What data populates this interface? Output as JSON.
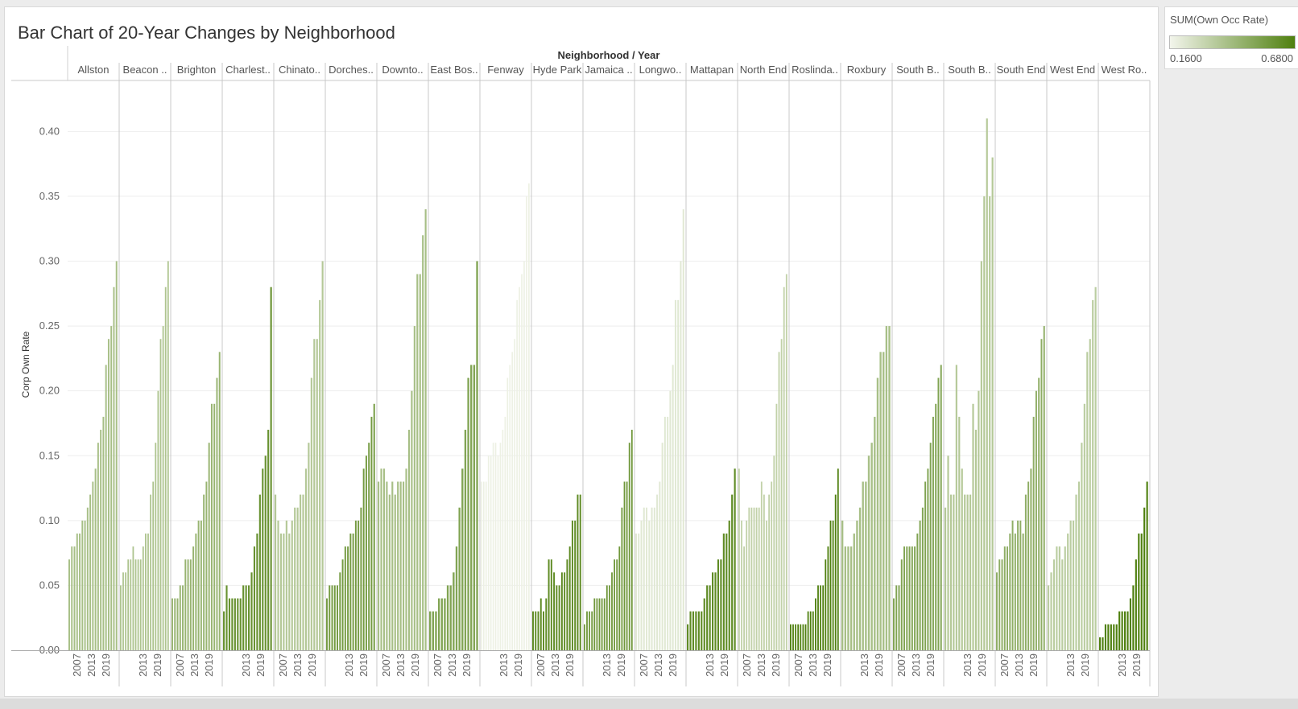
{
  "chart_data": {
    "type": "bar",
    "title": "Bar Chart of 20-Year Changes by Neighborhood",
    "column_header": "Neighborhood / Year",
    "ylabel": "Corp Own Rate",
    "ylim": [
      0,
      0.43
    ],
    "y_ticks": [
      "0.00",
      "0.05",
      "0.10",
      "0.15",
      "0.20",
      "0.25",
      "0.30",
      "0.35",
      "0.40"
    ],
    "x_tick_labels": [
      "2007",
      "2013",
      "2019"
    ],
    "color_legend": {
      "title": "SUM(Own Occ Rate)",
      "min_label": "0.1600",
      "max_label": "0.6800",
      "min_color": "#f3f5ec",
      "max_color": "#4f800f"
    },
    "neighborhoods": [
      {
        "name": "Allston",
        "color_value": 0.4,
        "hidden_ticks": [],
        "values": [
          0.07,
          0.08,
          0.08,
          0.09,
          0.09,
          0.1,
          0.1,
          0.11,
          0.12,
          0.13,
          0.14,
          0.16,
          0.17,
          0.18,
          0.22,
          0.24,
          0.25,
          0.28,
          0.3
        ]
      },
      {
        "name": "Beacon ..",
        "color_value": 0.38,
        "hidden_ticks": [
          "2007"
        ],
        "values": [
          0.05,
          0.06,
          0.06,
          0.07,
          0.07,
          0.08,
          0.07,
          0.07,
          0.07,
          0.08,
          0.09,
          0.09,
          0.12,
          0.13,
          0.16,
          0.2,
          0.24,
          0.25,
          0.28,
          0.3
        ]
      },
      {
        "name": "Brighton",
        "color_value": 0.45,
        "hidden_ticks": [],
        "values": [
          0.04,
          0.04,
          0.04,
          0.05,
          0.05,
          0.07,
          0.07,
          0.07,
          0.08,
          0.09,
          0.1,
          0.1,
          0.12,
          0.13,
          0.16,
          0.19,
          0.19,
          0.21,
          0.23
        ]
      },
      {
        "name": "Charlest..",
        "color_value": 0.6,
        "hidden_ticks": [
          "2007"
        ],
        "values": [
          0.03,
          0.05,
          0.04,
          0.04,
          0.04,
          0.04,
          0.04,
          0.05,
          0.05,
          0.05,
          0.06,
          0.08,
          0.09,
          0.12,
          0.14,
          0.15,
          0.17,
          0.28
        ]
      },
      {
        "name": "Chinato..",
        "color_value": 0.36,
        "hidden_ticks": [],
        "values": [
          0.12,
          0.1,
          0.09,
          0.09,
          0.1,
          0.09,
          0.1,
          0.11,
          0.11,
          0.12,
          0.12,
          0.14,
          0.16,
          0.21,
          0.24,
          0.24,
          0.27,
          0.3
        ]
      },
      {
        "name": "Dorches..",
        "color_value": 0.56,
        "hidden_ticks": [
          "2007"
        ],
        "values": [
          0.04,
          0.05,
          0.05,
          0.05,
          0.05,
          0.06,
          0.07,
          0.08,
          0.08,
          0.09,
          0.09,
          0.1,
          0.1,
          0.11,
          0.14,
          0.15,
          0.16,
          0.18,
          0.19
        ]
      },
      {
        "name": "Downto..",
        "color_value": 0.4,
        "hidden_ticks": [],
        "values": [
          0.13,
          0.14,
          0.14,
          0.13,
          0.12,
          0.13,
          0.12,
          0.13,
          0.13,
          0.13,
          0.14,
          0.17,
          0.2,
          0.25,
          0.29,
          0.29,
          0.32,
          0.34
        ]
      },
      {
        "name": "East Bos..",
        "color_value": 0.52,
        "hidden_ticks": [],
        "values": [
          0.03,
          0.03,
          0.03,
          0.04,
          0.04,
          0.04,
          0.05,
          0.05,
          0.06,
          0.08,
          0.11,
          0.14,
          0.17,
          0.21,
          0.22,
          0.22,
          0.3
        ]
      },
      {
        "name": "Fenway",
        "color_value": 0.18,
        "hidden_ticks": [
          "2007"
        ],
        "values": [
          0.13,
          0.13,
          0.13,
          0.15,
          0.15,
          0.16,
          0.16,
          0.15,
          0.16,
          0.17,
          0.18,
          0.21,
          0.22,
          0.23,
          0.24,
          0.27,
          0.28,
          0.29,
          0.3,
          0.35,
          0.36
        ]
      },
      {
        "name": "Hyde Park",
        "color_value": 0.63,
        "hidden_ticks": [],
        "values": [
          0.03,
          0.03,
          0.03,
          0.04,
          0.03,
          0.04,
          0.07,
          0.07,
          0.06,
          0.05,
          0.05,
          0.06,
          0.06,
          0.07,
          0.08,
          0.1,
          0.1,
          0.12,
          0.12
        ]
      },
      {
        "name": "Jamaica ..",
        "color_value": 0.58,
        "hidden_ticks": [
          "2007"
        ],
        "values": [
          0.02,
          0.03,
          0.03,
          0.03,
          0.04,
          0.04,
          0.04,
          0.04,
          0.04,
          0.05,
          0.05,
          0.06,
          0.07,
          0.07,
          0.08,
          0.11,
          0.13,
          0.13,
          0.16,
          0.17
        ]
      },
      {
        "name": "Longwo..",
        "color_value": 0.22,
        "hidden_ticks": [],
        "values": [
          0.09,
          0.09,
          0.1,
          0.11,
          0.11,
          0.1,
          0.11,
          0.11,
          0.12,
          0.13,
          0.16,
          0.18,
          0.18,
          0.2,
          0.22,
          0.27,
          0.27,
          0.3,
          0.34
        ]
      },
      {
        "name": "Mattapan",
        "color_value": 0.63,
        "hidden_ticks": [
          "2007"
        ],
        "values": [
          0.02,
          0.03,
          0.03,
          0.03,
          0.03,
          0.03,
          0.04,
          0.05,
          0.05,
          0.06,
          0.06,
          0.07,
          0.07,
          0.09,
          0.09,
          0.1,
          0.12,
          0.14
        ]
      },
      {
        "name": "North End",
        "color_value": 0.32,
        "hidden_ticks": [],
        "values": [
          0.14,
          0.1,
          0.08,
          0.1,
          0.11,
          0.11,
          0.11,
          0.11,
          0.11,
          0.13,
          0.12,
          0.1,
          0.12,
          0.13,
          0.15,
          0.19,
          0.23,
          0.24,
          0.28,
          0.29
        ]
      },
      {
        "name": "Roslinda..",
        "color_value": 0.68,
        "hidden_ticks": [],
        "values": [
          0.02,
          0.02,
          0.02,
          0.02,
          0.02,
          0.02,
          0.02,
          0.03,
          0.03,
          0.03,
          0.04,
          0.05,
          0.05,
          0.05,
          0.07,
          0.08,
          0.1,
          0.1,
          0.12,
          0.14
        ]
      },
      {
        "name": "Roxbury",
        "color_value": 0.4,
        "hidden_ticks": [
          "2007"
        ],
        "values": [
          0.1,
          0.08,
          0.08,
          0.08,
          0.09,
          0.1,
          0.11,
          0.13,
          0.13,
          0.15,
          0.16,
          0.18,
          0.21,
          0.23,
          0.23,
          0.25,
          0.25
        ]
      },
      {
        "name": "South B..",
        "color_value": 0.52,
        "hidden_ticks": [],
        "values": [
          0.04,
          0.05,
          0.05,
          0.07,
          0.08,
          0.08,
          0.08,
          0.08,
          0.08,
          0.09,
          0.1,
          0.11,
          0.13,
          0.14,
          0.16,
          0.18,
          0.19,
          0.21,
          0.22
        ]
      },
      {
        "name": "South B..",
        "color_value": 0.36,
        "hidden_ticks": [
          "2007"
        ],
        "values": [
          0.11,
          0.15,
          0.12,
          0.12,
          0.22,
          0.18,
          0.14,
          0.12,
          0.12,
          0.12,
          0.19,
          0.17,
          0.2,
          0.3,
          0.35,
          0.41,
          0.35,
          0.38
        ]
      },
      {
        "name": "South End",
        "color_value": 0.48,
        "hidden_ticks": [],
        "values": [
          0.06,
          0.07,
          0.07,
          0.08,
          0.08,
          0.09,
          0.1,
          0.09,
          0.1,
          0.1,
          0.09,
          0.12,
          0.13,
          0.14,
          0.18,
          0.2,
          0.21,
          0.24,
          0.25
        ]
      },
      {
        "name": "West End",
        "color_value": 0.34,
        "hidden_ticks": [
          "2007"
        ],
        "values": [
          0.05,
          0.06,
          0.07,
          0.08,
          0.08,
          0.07,
          0.08,
          0.09,
          0.1,
          0.1,
          0.12,
          0.13,
          0.16,
          0.19,
          0.23,
          0.24,
          0.27,
          0.28
        ]
      },
      {
        "name": "West Ro..",
        "color_value": 0.68,
        "hidden_ticks": [
          "2007"
        ],
        "values": [
          0.01,
          0.01,
          0.02,
          0.02,
          0.02,
          0.02,
          0.02,
          0.03,
          0.03,
          0.03,
          0.03,
          0.04,
          0.05,
          0.07,
          0.09,
          0.09,
          0.11,
          0.13
        ]
      }
    ]
  }
}
